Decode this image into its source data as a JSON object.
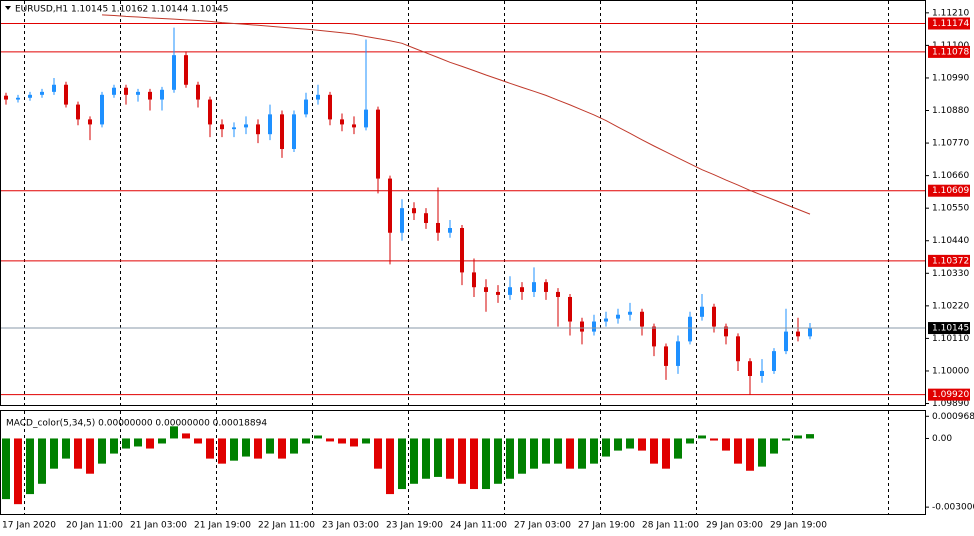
{
  "chart_data": [
    {
      "type": "candlestick",
      "title": "EURUSD,H1  1.10145 1.10162 1.10144 1.10145",
      "up_color": "#1e90ff",
      "down_color": "#d40000",
      "open": [
        1.1093,
        1.10917,
        1.10923,
        1.10933,
        1.10943,
        1.10967,
        1.109,
        1.1085,
        1.10833,
        1.10933,
        1.10957,
        1.10933,
        1.10943,
        1.10917,
        1.1095,
        1.11067,
        1.10967,
        1.10917,
        1.10833,
        1.10817,
        1.10823,
        1.10833,
        1.108,
        1.10867,
        1.1075,
        1.10867,
        1.10917,
        1.10933,
        1.1085,
        1.10833,
        1.10823,
        1.10883,
        1.1065,
        1.10467,
        1.1055,
        1.10533,
        1.105,
        1.10467,
        1.10483,
        1.10333,
        1.10283,
        1.10267,
        1.10257,
        1.10283,
        1.10267,
        1.103,
        1.10267,
        1.1025,
        1.10167,
        1.10133,
        1.10167,
        1.10177,
        1.1019,
        1.102,
        1.1015,
        1.10083,
        1.10017,
        1.101,
        1.10183,
        1.10217,
        1.1015,
        1.10117,
        1.10033,
        1.09983,
        1.1,
        1.10067,
        1.10133,
        1.10117
      ],
      "high": [
        1.1094,
        1.10933,
        1.10943,
        1.10953,
        1.1099,
        1.10977,
        1.1091,
        1.1086,
        1.10943,
        1.10967,
        1.10967,
        1.10953,
        1.10953,
        1.1096,
        1.1116,
        1.1108,
        1.10977,
        1.10927,
        1.1085,
        1.1084,
        1.1086,
        1.1085,
        1.109,
        1.1088,
        1.1088,
        1.1094,
        1.10967,
        1.10943,
        1.1087,
        1.1086,
        1.1112,
        1.10893,
        1.1066,
        1.1058,
        1.1057,
        1.1055,
        1.1062,
        1.1051,
        1.10493,
        1.1038,
        1.1031,
        1.1029,
        1.1032,
        1.103,
        1.1035,
        1.1031,
        1.1028,
        1.1026,
        1.1018,
        1.1019,
        1.102,
        1.1021,
        1.1023,
        1.1021,
        1.1016,
        1.10093,
        1.1012,
        1.102,
        1.1026,
        1.10227,
        1.1016,
        1.10127,
        1.10043,
        1.1004,
        1.10077,
        1.1021,
        1.1018,
        1.10162
      ],
      "low": [
        1.109,
        1.10907,
        1.10913,
        1.10923,
        1.10933,
        1.1089,
        1.1083,
        1.1078,
        1.10823,
        1.10923,
        1.109,
        1.1091,
        1.1088,
        1.1088,
        1.1094,
        1.10957,
        1.1089,
        1.1079,
        1.1079,
        1.1079,
        1.108,
        1.1077,
        1.1078,
        1.1072,
        1.1074,
        1.10857,
        1.109,
        1.1083,
        1.1081,
        1.108,
        1.10813,
        1.106,
        1.1036,
        1.1044,
        1.1051,
        1.1048,
        1.1044,
        1.1045,
        1.1029,
        1.1025,
        1.102,
        1.1023,
        1.1024,
        1.1024,
        1.1025,
        1.1024,
        1.1015,
        1.1012,
        1.1009,
        1.1012,
        1.1015,
        1.1016,
        1.1017,
        1.1012,
        1.1005,
        1.0997,
        1.0999,
        1.1009,
        1.1017,
        1.1013,
        1.1009,
        1.1,
        1.0992,
        1.0996,
        1.0999,
        1.10057,
        1.101,
        1.10107
      ],
      "close": [
        1.10917,
        1.10923,
        1.10933,
        1.10943,
        1.10967,
        1.109,
        1.1085,
        1.10833,
        1.10933,
        1.10957,
        1.10933,
        1.10943,
        1.10917,
        1.1095,
        1.11067,
        1.10967,
        1.10917,
        1.10833,
        1.10817,
        1.10823,
        1.10833,
        1.108,
        1.10867,
        1.1075,
        1.10867,
        1.10917,
        1.10933,
        1.1085,
        1.10833,
        1.10823,
        1.10883,
        1.1065,
        1.10467,
        1.1055,
        1.10533,
        1.105,
        1.10467,
        1.10483,
        1.10333,
        1.10283,
        1.10267,
        1.10257,
        1.10283,
        1.10267,
        1.103,
        1.10267,
        1.1025,
        1.10167,
        1.10133,
        1.10167,
        1.10177,
        1.1019,
        1.102,
        1.1015,
        1.10083,
        1.10017,
        1.101,
        1.10183,
        1.10217,
        1.1015,
        1.10117,
        1.10033,
        1.09983,
        1.1,
        1.10067,
        1.10133,
        1.10117,
        1.10145
      ],
      "series": [
        {
          "color": "#c0392b",
          "values": [
            null,
            null,
            null,
            null,
            null,
            null,
            null,
            null,
            1.11203,
            1.11201,
            1.11198,
            1.11196,
            1.11193,
            1.11191,
            1.11189,
            1.11186,
            1.11184,
            1.11181,
            1.11177,
            1.11174,
            1.11171,
            1.11168,
            1.11165,
            1.11161,
            1.11158,
            1.11155,
            1.11151,
            1.11147,
            1.11143,
            1.11138,
            1.1113,
            1.11123,
            1.11116,
            1.11107,
            1.11091,
            1.11075,
            1.11059,
            1.11043,
            1.11029,
            1.11015,
            1.11,
            1.10986,
            1.10972,
            1.10958,
            1.10945,
            1.10931,
            1.10915,
            1.10899,
            1.10882,
            1.10865,
            1.10846,
            1.10824,
            1.10803,
            1.10781,
            1.1076,
            1.1074,
            1.1072,
            1.107,
            1.1068,
            1.10663,
            1.10645,
            1.10628,
            1.1061,
            1.10594,
            1.10578,
            1.10562,
            1.10546,
            1.1053
          ]
        }
      ],
      "levels": [
        {
          "value": 1.11174,
          "label": "1.11174"
        },
        {
          "value": 1.11078,
          "label": "1.11078"
        },
        {
          "value": 1.10609,
          "label": "1.10609"
        },
        {
          "value": 1.10372,
          "label": "1.10372"
        },
        {
          "value": 1.0992,
          "label": "1.09920"
        }
      ],
      "level_color": "#e00000",
      "ylim": [
        1.09885,
        1.1125
      ],
      "yticks": [
        {
          "value": 1.1121,
          "label": "1.11210"
        },
        {
          "value": 1.111,
          "label": "1.11100"
        },
        {
          "value": 1.1099,
          "label": "1.10990"
        },
        {
          "value": 1.1088,
          "label": "1.10880"
        },
        {
          "value": 1.1077,
          "label": "1.10770"
        },
        {
          "value": 1.1066,
          "label": "1.10660"
        },
        {
          "value": 1.1055,
          "label": "1.10550"
        },
        {
          "value": 1.1044,
          "label": "1.10440"
        },
        {
          "value": 1.1033,
          "label": "1.10330"
        },
        {
          "value": 1.1022,
          "label": "1.10220"
        },
        {
          "value": 1.1011,
          "label": "1.10110"
        },
        {
          "value": 1.1,
          "label": "1.10000"
        },
        {
          "value": 1.0989,
          "label": "1.09890"
        }
      ],
      "x_labels": [
        "17 Jan 2020",
        "20 Jan 11:00",
        "21 Jan 03:00",
        "21 Jan 19:00",
        "22 Jan 11:00",
        "23 Jan 03:00",
        "23 Jan 19:00",
        "24 Jan 11:00",
        "27 Jan 03:00",
        "27 Jan 19:00",
        "28 Jan 11:00",
        "29 Jan 03:00",
        "29 Jan 19:00"
      ]
    },
    {
      "type": "bar",
      "title": "MACD_color(5,34,5) 0.00000000 0.00000000 0.00018894",
      "up_color": "#008000",
      "down_color": "#e00000",
      "values": [
        -0.00265,
        -0.00287,
        -0.00243,
        -0.00198,
        -0.00132,
        -0.00088,
        -0.00132,
        -0.00154,
        -0.0011,
        -0.00066,
        -0.00044,
        -0.00035,
        -0.00044,
        -0.00022,
        0.00053,
        0.00022,
        -0.00022,
        -0.00088,
        -0.0011,
        -0.00097,
        -0.00079,
        -0.00088,
        -0.00066,
        -0.00088,
        -0.00066,
        -0.00022,
        0.00013,
        -0.00013,
        -0.00022,
        -0.00035,
        -0.00022,
        -0.00132,
        -0.00243,
        -0.00221,
        -0.00198,
        -0.00176,
        -0.00168,
        -0.00176,
        -0.00198,
        -0.00221,
        -0.00221,
        -0.00198,
        -0.00176,
        -0.00154,
        -0.00132,
        -0.0011,
        -0.0011,
        -0.00132,
        -0.00132,
        -0.0011,
        -0.00079,
        -0.00053,
        -0.00044,
        -0.00053,
        -0.0011,
        -0.00132,
        -0.00088,
        -0.00022,
        0.00013,
        -9e-05,
        -0.00053,
        -0.0011,
        -0.00141,
        -0.00123,
        -0.00066,
        -9e-05,
        0.00013,
        0.00019
      ],
      "ylim": [
        -0.0033,
        0.0012
      ],
      "yticks": [
        0.0009685,
        {
          "value": 0,
          "label": "0.00"
        },
        {
          "value": -0.003,
          "label": "-0.003000"
        }
      ]
    }
  ]
}
